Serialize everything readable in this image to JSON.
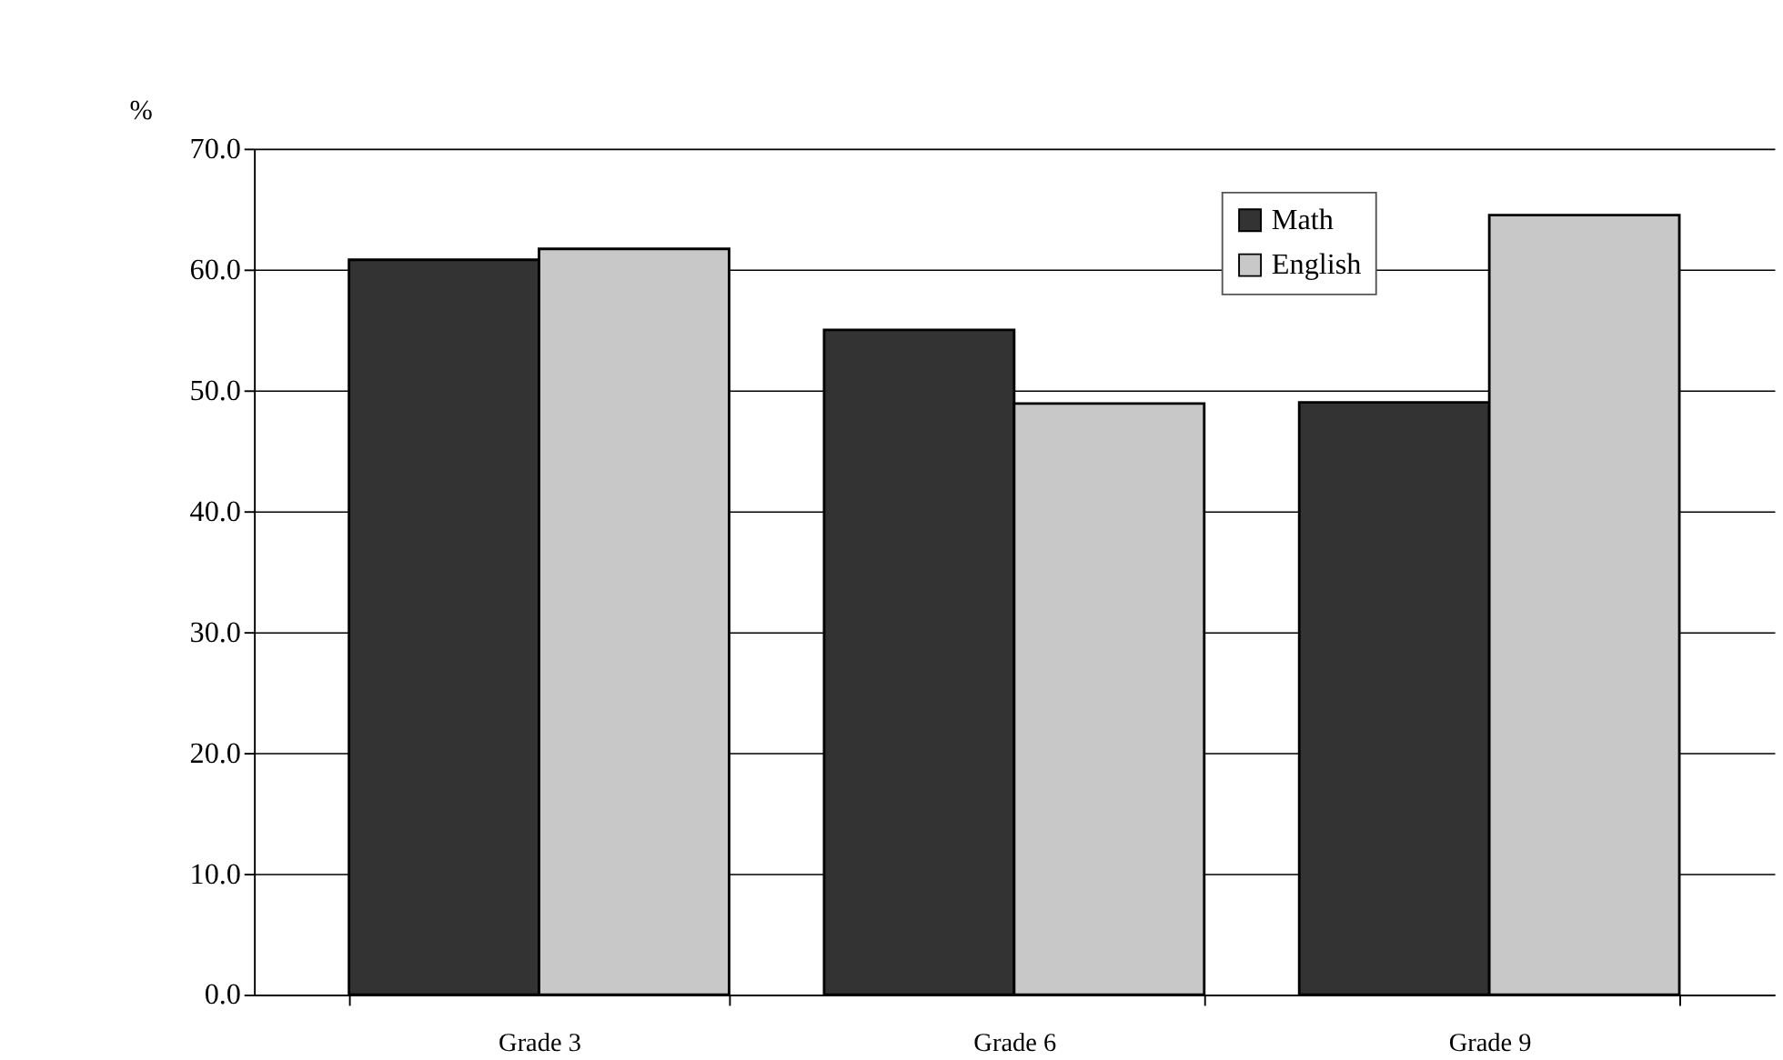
{
  "chart_data": {
    "type": "bar",
    "ylabel": "%",
    "categories": [
      "Grade 3",
      "Grade 6",
      "Grade 9"
    ],
    "series": [
      {
        "name": "Math",
        "color": "#333333",
        "values": [
          60.8,
          55.0,
          49.0
        ]
      },
      {
        "name": "English",
        "color": "#c8c8c8",
        "values": [
          61.7,
          48.9,
          64.5
        ]
      }
    ],
    "ylim": [
      0,
      70
    ],
    "yticks": [
      {
        "value": 0,
        "label": "0.0"
      },
      {
        "value": 10,
        "label": "10.0"
      },
      {
        "value": 20,
        "label": "20.0"
      },
      {
        "value": 30,
        "label": "30.0"
      },
      {
        "value": 40,
        "label": "40.0"
      },
      {
        "value": 50,
        "label": "50.0"
      },
      {
        "value": 60,
        "label": "60.0"
      },
      {
        "value": 70,
        "label": "70.0"
      }
    ],
    "grid": "y",
    "legend": "top right"
  }
}
